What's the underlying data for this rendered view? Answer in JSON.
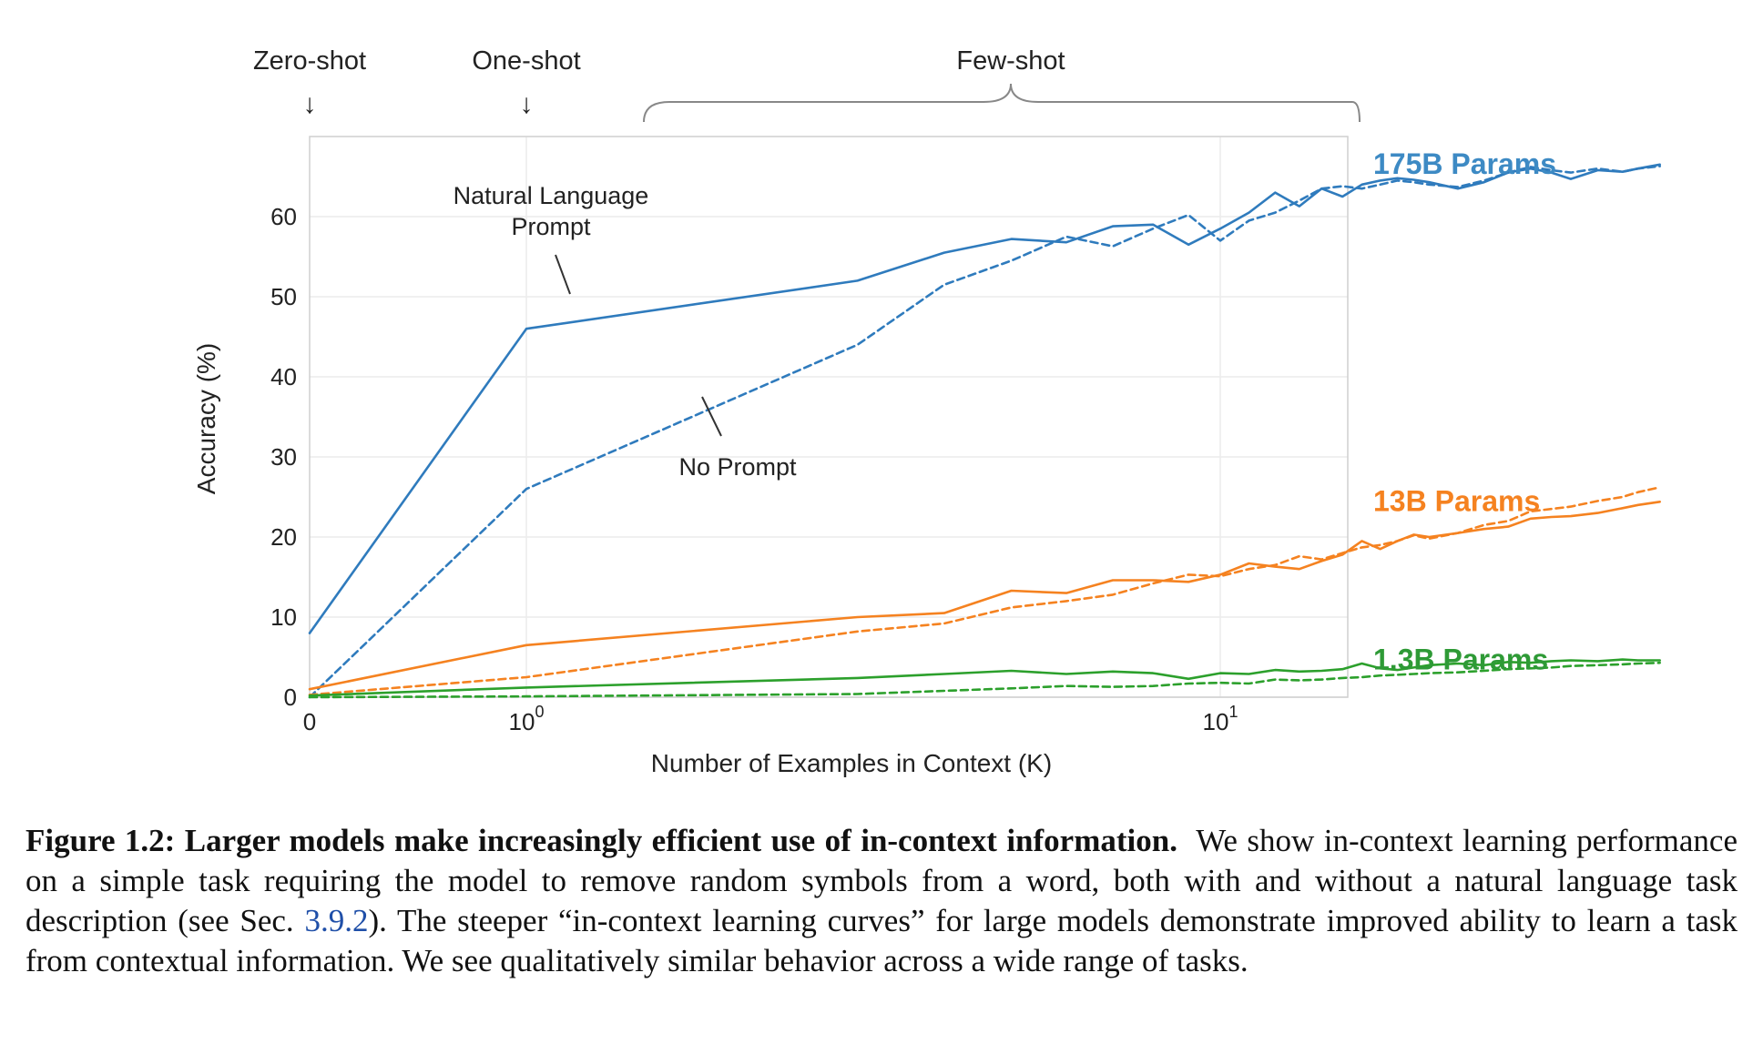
{
  "chart_data": {
    "type": "line",
    "xlabel": "Number of Examples in Context  (K)",
    "ylabel": "Accuracy (%)",
    "x_scale": "symlog",
    "xlim": [
      0,
      43
    ],
    "ylim": [
      0,
      70
    ],
    "yticks": [
      "0",
      "10",
      "20",
      "30",
      "40",
      "50",
      "60"
    ],
    "xticks": [
      {
        "value": 0,
        "base": "0",
        "exp": ""
      },
      {
        "value": 1,
        "base": "10",
        "exp": "0"
      },
      {
        "value": 10,
        "base": "10",
        "exp": "1"
      }
    ],
    "grid": true,
    "top_annotations": {
      "zero_shot": "Zero-shot",
      "one_shot": "One-shot",
      "few_shot": "Few-shot"
    },
    "annotations": {
      "natural_language_prompt": "Natural Language\nPrompt",
      "no_prompt": "No Prompt"
    },
    "series": [
      {
        "name": "175B Params",
        "color": "#2f7bbd",
        "label_color": "#3d8ac4",
        "style": "solid",
        "x": [
          0,
          1,
          3,
          4,
          5,
          6,
          7,
          8,
          9,
          10,
          11,
          12,
          13,
          14,
          15,
          16,
          17,
          18,
          19,
          20,
          22,
          24,
          26,
          28,
          30,
          32,
          35,
          38,
          40,
          43
        ],
        "y": [
          8,
          46,
          52,
          55.5,
          57.2,
          56.8,
          58.8,
          59,
          56.5,
          58.5,
          60.5,
          63,
          61.3,
          63.5,
          62.5,
          64,
          64.5,
          64.8,
          64.6,
          64.3,
          63.5,
          64.3,
          65.5,
          66,
          65.5,
          64.7,
          65.8,
          65.6,
          66,
          66.5
        ]
      },
      {
        "name": "175B Params",
        "color": "#2f7bbd",
        "style": "dashed",
        "x": [
          0,
          1,
          3,
          4,
          5,
          6,
          7,
          8,
          9,
          10,
          11,
          12,
          13,
          14,
          15,
          16,
          17,
          18,
          19,
          20,
          22,
          24,
          26,
          28,
          30,
          32,
          35,
          38,
          40,
          43
        ],
        "y": [
          0,
          26,
          44,
          51.5,
          54.5,
          57.5,
          56.3,
          58.5,
          60.2,
          57,
          59.5,
          60.5,
          62,
          63.5,
          63.8,
          63.5,
          64,
          64.5,
          64.3,
          64,
          63.7,
          64.5,
          65.5,
          66.2,
          65.8,
          65.5,
          66,
          65.6,
          66,
          66.3
        ]
      },
      {
        "name": "13B Params",
        "color": "#f58220",
        "label_color": "#f58220",
        "style": "solid",
        "x": [
          0,
          1,
          3,
          4,
          5,
          6,
          7,
          8,
          9,
          10,
          11,
          12,
          13,
          14,
          15,
          16,
          17,
          18,
          19,
          20,
          22,
          24,
          26,
          28,
          30,
          32,
          35,
          38,
          40,
          43
        ],
        "y": [
          1,
          6.5,
          10,
          10.5,
          13.3,
          13,
          14.6,
          14.6,
          14.4,
          15.3,
          16.7,
          16.3,
          16,
          17,
          17.8,
          19.5,
          18.5,
          19.5,
          20.3,
          20,
          20.5,
          21,
          21.3,
          22.3,
          22.5,
          22.6,
          23,
          23.6,
          24,
          24.4
        ]
      },
      {
        "name": "13B Params",
        "color": "#f58220",
        "style": "dashed",
        "x": [
          0,
          1,
          3,
          4,
          5,
          6,
          7,
          8,
          9,
          10,
          11,
          12,
          13,
          14,
          15,
          16,
          17,
          18,
          19,
          20,
          22,
          24,
          26,
          28,
          30,
          32,
          35,
          38,
          40,
          43
        ],
        "y": [
          0.3,
          2.5,
          8.2,
          9.2,
          11.2,
          12,
          12.8,
          14.2,
          15.3,
          15.1,
          16,
          16.5,
          17.6,
          17.2,
          18,
          18.7,
          19,
          19.5,
          20.2,
          19.8,
          20.5,
          21.5,
          22,
          23.2,
          23.5,
          23.8,
          24.5,
          25,
          25.6,
          26.2
        ]
      },
      {
        "name": "1.3B Params",
        "color": "#2ca02c",
        "label_color": "#2e9a36",
        "style": "solid",
        "x": [
          0,
          1,
          3,
          4,
          5,
          6,
          7,
          8,
          9,
          10,
          11,
          12,
          13,
          14,
          15,
          16,
          17,
          18,
          19,
          20,
          22,
          24,
          26,
          28,
          30,
          32,
          35,
          38,
          40,
          43
        ],
        "y": [
          0.2,
          1.2,
          2.4,
          2.9,
          3.3,
          2.9,
          3.2,
          3,
          2.3,
          3,
          2.9,
          3.4,
          3.2,
          3.3,
          3.5,
          4.2,
          3.6,
          3.4,
          3.7,
          4,
          4.2,
          4,
          4.4,
          4.3,
          4.5,
          4.6,
          4.5,
          4.7,
          4.6,
          4.6
        ]
      },
      {
        "name": "1.3B Params",
        "color": "#2ca02c",
        "style": "dashed",
        "x": [
          0,
          1,
          3,
          4,
          5,
          6,
          7,
          8,
          9,
          10,
          11,
          12,
          13,
          14,
          15,
          16,
          17,
          18,
          19,
          20,
          22,
          24,
          26,
          28,
          30,
          32,
          35,
          38,
          40,
          43
        ],
        "y": [
          0,
          0.1,
          0.4,
          0.8,
          1.1,
          1.4,
          1.3,
          1.4,
          1.7,
          1.8,
          1.7,
          2.2,
          2.1,
          2.2,
          2.4,
          2.5,
          2.7,
          2.8,
          2.9,
          3,
          3.1,
          3.3,
          3.5,
          3.6,
          3.7,
          3.9,
          4,
          4.1,
          4.2,
          4.3
        ]
      }
    ]
  },
  "caption": {
    "title": "Figure 1.2: Larger models make increasingly efficient use of in-context information.",
    "text_1": "We show in-context learning performance on a simple task requiring the model to remove random symbols from a word, both with and without a natural language task description (see Sec.",
    "link": "3.9.2",
    "text_2": "). The steeper “in-context learning curves” for large models demonstrate improved ability to learn a task from contextual information. We see qualitatively similar behavior across a wide range of tasks."
  }
}
